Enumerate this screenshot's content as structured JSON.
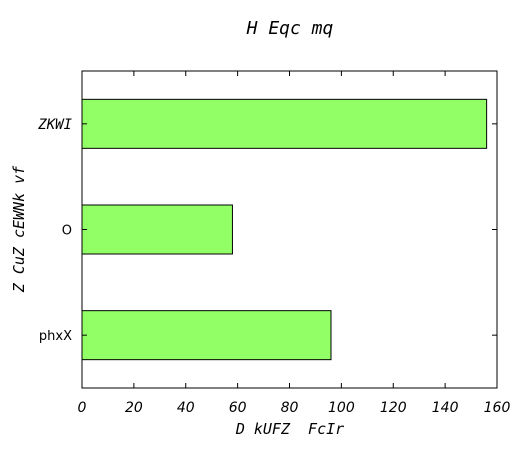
{
  "chart_data": {
    "type": "bar",
    "orientation": "horizontal",
    "title": "H Eqc mq",
    "xlabel": "D kUFZ  FcIr",
    "ylabel": "Z CuZ cEWNk vf",
    "categories": [
      "ZKWI",
      "O",
      "phxX"
    ],
    "values": [
      156,
      58,
      96
    ],
    "xlim": [
      0,
      160
    ],
    "xticks": [
      0,
      20,
      40,
      60,
      80,
      100,
      120,
      140,
      160
    ],
    "grid": false,
    "legend": "none",
    "bar_color": "#93ff66",
    "edge_color": "#000000"
  }
}
